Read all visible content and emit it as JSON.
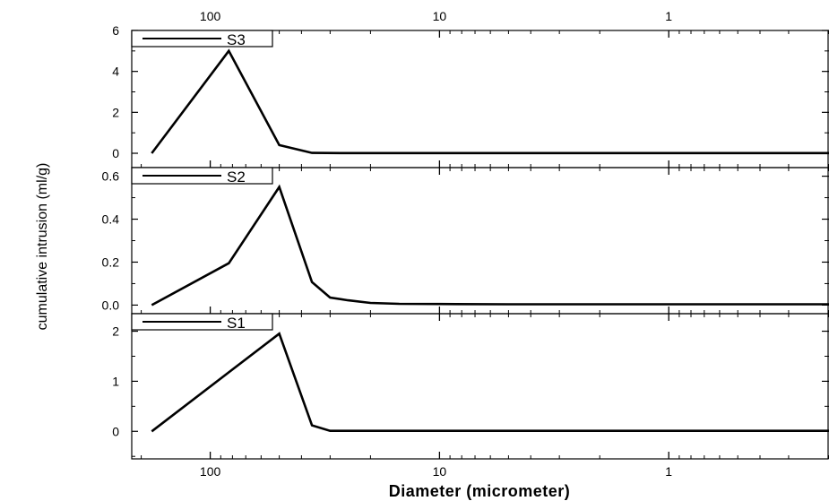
{
  "chart_data": [
    {
      "type": "line",
      "panel": "top",
      "legend_placement": "top-left",
      "series": [
        {
          "name": "S3",
          "x": [
            180,
            83,
            50,
            36,
            27,
            20,
            14,
            10,
            5,
            2,
            0.5,
            0.2
          ],
          "y": [
            0,
            5.0,
            0.4,
            0.02,
            0.01,
            0.01,
            0.01,
            0.01,
            0.01,
            0.01,
            0.01,
            0.01
          ]
        }
      ],
      "ylim": [
        -0.7,
        6
      ],
      "yticks": [
        0,
        2,
        4,
        6
      ],
      "ytick_labels": [
        "0",
        "2",
        "4",
        "6"
      ]
    },
    {
      "type": "line",
      "panel": "middle",
      "legend_placement": "top-left",
      "series": [
        {
          "name": "S2",
          "x": [
            180,
            83,
            50,
            36,
            30,
            25,
            20,
            15,
            10,
            5,
            2,
            0.5,
            0.2
          ],
          "y": [
            0,
            0.195,
            0.55,
            0.107,
            0.035,
            0.022,
            0.01,
            0.006,
            0.005,
            0.004,
            0.004,
            0.004,
            0.004
          ]
        }
      ],
      "ylim": [
        -0.04,
        0.64
      ],
      "yticks": [
        0.0,
        0.2,
        0.4,
        0.6
      ],
      "ytick_labels": [
        "0.0",
        "0.2",
        "0.4",
        "0.6"
      ]
    },
    {
      "type": "line",
      "panel": "bottom",
      "legend_placement": "top-left",
      "series": [
        {
          "name": "S1",
          "x": [
            180,
            50,
            36,
            30,
            25,
            20,
            10,
            5,
            2,
            0.5,
            0.2
          ],
          "y": [
            0,
            1.95,
            0.12,
            0.01,
            0.01,
            0.01,
            0.01,
            0.01,
            0.01,
            0.01,
            0.01
          ]
        }
      ],
      "ylim": [
        -0.55,
        2.35
      ],
      "yticks": [
        0,
        1,
        2
      ],
      "ytick_labels": [
        "0",
        "1",
        "2"
      ]
    }
  ],
  "x_axis": {
    "scale": "log",
    "reversed": true,
    "xlim": [
      220,
      0.2
    ],
    "major_ticks": [
      100,
      10,
      1
    ],
    "tick_labels": [
      "100",
      "10",
      "1"
    ],
    "label": "Diameter (micrometer)"
  },
  "y_axis_label": "cumulative intrusion (ml/g)",
  "colors": {
    "line": "#000000",
    "frame": "#000000",
    "background": "#ffffff"
  }
}
